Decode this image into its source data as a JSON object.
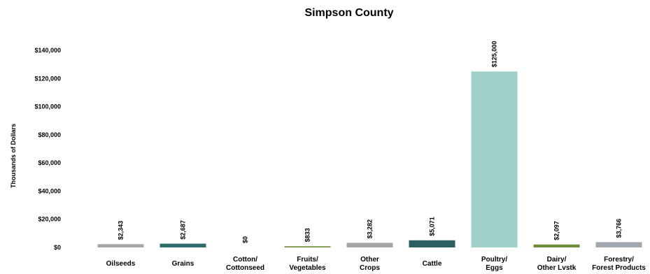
{
  "chart_data": {
    "type": "bar",
    "title": "Simpson County",
    "ylabel": "Thousands of Dollars",
    "xlabel": "",
    "ylim": [
      0,
      140000
    ],
    "yticks": [
      0,
      20000,
      40000,
      60000,
      80000,
      100000,
      120000,
      140000
    ],
    "ytick_labels": [
      "$0",
      "$20,000",
      "$40,000",
      "$60,000",
      "$80,000",
      "$100,000",
      "$120,000",
      "$140,000"
    ],
    "grid": false,
    "legend": "none",
    "categories": [
      [
        "Oilseeds"
      ],
      [
        "Grains"
      ],
      [
        "Cotton/",
        "Cottonseed"
      ],
      [
        "Fruits/",
        "Vegetables"
      ],
      [
        "Other",
        "Crops"
      ],
      [
        "Cattle"
      ],
      [
        "Poultry/",
        "Eggs"
      ],
      [
        "Dairy/",
        "Other Lvstk"
      ],
      [
        "Forestry/",
        "Forest Products"
      ]
    ],
    "values": [
      2343,
      2687,
      0,
      833,
      3282,
      5071,
      125000,
      2097,
      3766
    ],
    "value_labels": [
      "$2,343",
      "$2,687",
      "$0",
      "$833",
      "$3,282",
      "$5,071",
      "$125,000",
      "$2,097",
      "$3,766"
    ],
    "colors": [
      "#a5a5a5",
      "#2e6b6b",
      "#5a7f3a",
      "#6b8e3a",
      "#a5a5a5",
      "#2a6060",
      "#9fd1c8",
      "#6b8e3a",
      "#a0a8b0"
    ]
  }
}
